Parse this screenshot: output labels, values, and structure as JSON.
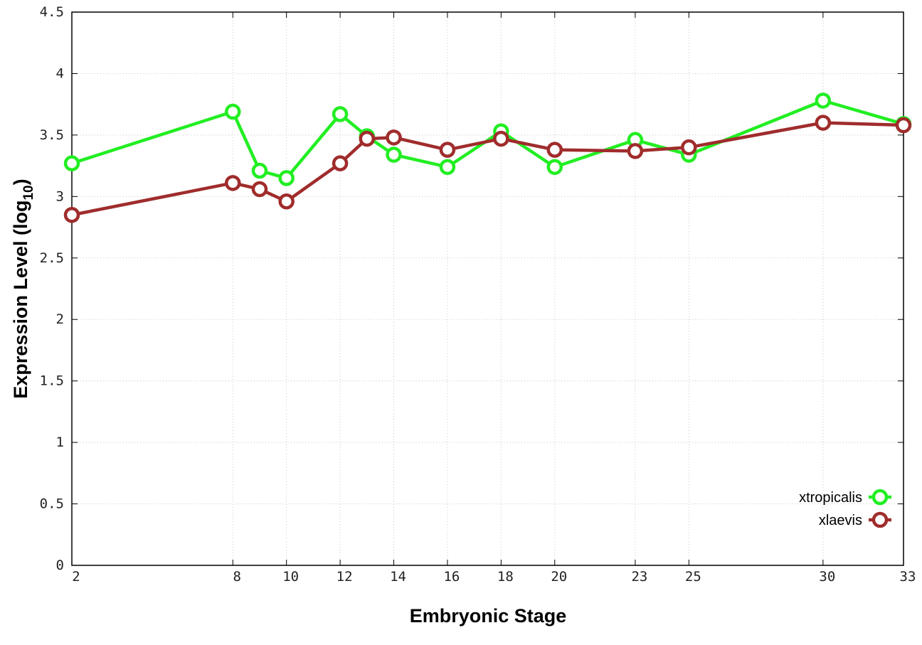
{
  "chart_data": {
    "type": "line",
    "xlabel": "Embryonic Stage",
    "ylabel": "Expression Level (log",
    "ylabel_sub": "10",
    "ylabel_close": ")",
    "x_ticks": [
      "2",
      "8",
      "10",
      "12",
      "14",
      "16",
      "18",
      "20",
      "23",
      "25",
      "30",
      "33"
    ],
    "y_ticks": [
      "0",
      "0.5",
      "1",
      "1.5",
      "2",
      "2.5",
      "3",
      "3.5",
      "4",
      "4.5"
    ],
    "xlim": [
      2,
      33
    ],
    "ylim": [
      0,
      4.5
    ],
    "grid": true,
    "legend_position": "bottom-right",
    "x": [
      2,
      8,
      9,
      10,
      12,
      13,
      14,
      16,
      18,
      20,
      23,
      25,
      30,
      33
    ],
    "series": [
      {
        "name": "xtropicalis",
        "color": "#22ee22",
        "values": [
          3.27,
          3.69,
          3.21,
          3.15,
          3.67,
          3.49,
          3.34,
          3.24,
          3.53,
          3.24,
          3.46,
          3.34,
          3.78,
          3.59
        ]
      },
      {
        "name": "xlaevis",
        "color": "#a02c2c",
        "values": [
          2.85,
          3.11,
          3.06,
          2.96,
          3.27,
          3.47,
          3.48,
          3.38,
          3.47,
          3.38,
          3.37,
          3.4,
          3.6,
          3.58
        ]
      }
    ]
  }
}
